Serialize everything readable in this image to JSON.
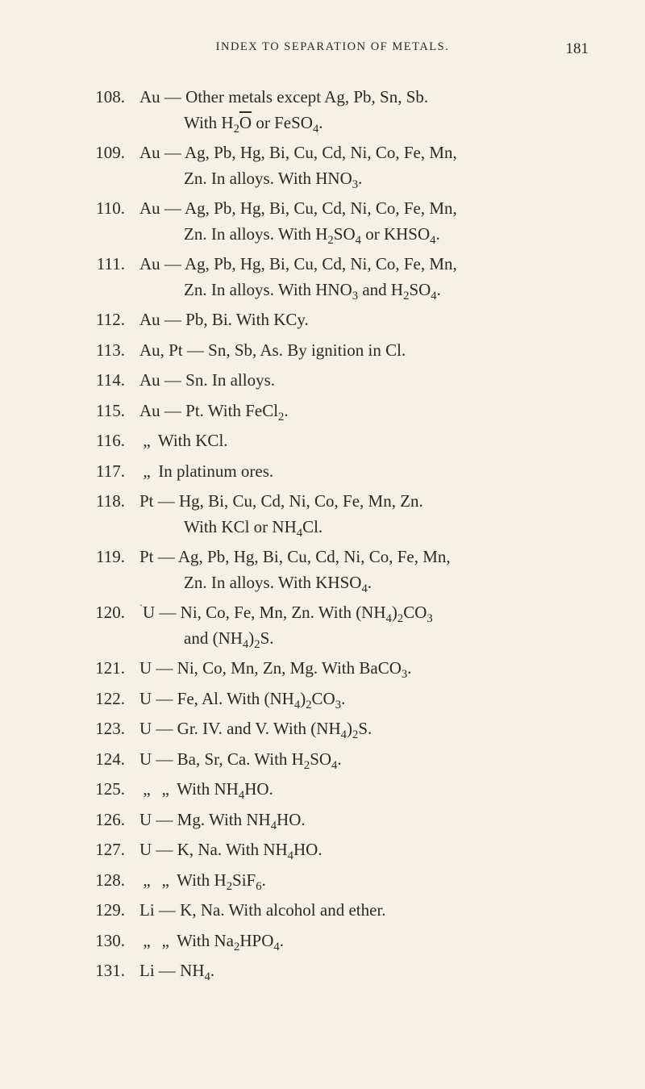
{
  "header_title": "INDEX TO SEPARATION OF METALS.",
  "page_number": "181",
  "text_color": "#2a2a22",
  "background_color": "#f5f1e4",
  "font_family": "Times New Roman",
  "body_fontsize": 21,
  "header_fontsize": 14.5,
  "pagenum_fontsize": 19,
  "entries": [
    {
      "num": "108.",
      "line1": "Au — Other metals except Ag, Pb, Sn, Sb.",
      "line2": "With H₂O̅ or FeSO₄."
    },
    {
      "num": "109.",
      "line1": "Au — Ag, Pb, Hg, Bi, Cu, Cd, Ni, Co, Fe, Mn,",
      "line2": "Zn.   In alloys.   With HNO₃."
    },
    {
      "num": "110.",
      "line1": "Au — Ag, Pb, Hg, Bi, Cu, Cd, Ni, Co, Fe, Mn,",
      "line2": "Zn.   In alloys.   With H₂SO₄ or KHSO₄."
    },
    {
      "num": "111.",
      "line1": "Au — Ag, Pb, Hg, Bi, Cu, Cd, Ni, Co, Fe, Mn,",
      "line2": "Zn.   In alloys.   With HNO₃ and H₂SO₄."
    },
    {
      "num": "112.",
      "line1": "Au — Pb, Bi.   With KCy."
    },
    {
      "num": "113.",
      "line1": "Au, Pt — Sn, Sb, As.   By ignition in Cl."
    },
    {
      "num": "114.",
      "line1": "Au — Sn.   In alloys."
    },
    {
      "num": "115.",
      "line1": "Au — Pt.   With FeCl₂."
    },
    {
      "num": "116.",
      "line1": "      „        With KCl."
    },
    {
      "num": "117.",
      "line1": "      „        In platinum ores."
    },
    {
      "num": "118.",
      "line1": "Pt — Hg, Bi, Cu, Cd, Ni, Co, Fe, Mn, Zn.",
      "line2": "With KCl or NH₄Cl."
    },
    {
      "num": "119.",
      "line1": "Pt — Ag, Pb, Hg, Bi, Cu, Cd, Ni, Co, Fe, Mn,",
      "line2": "Zn.   In alloys.   With KHSO₄."
    },
    {
      "num": "120.",
      "line1": "U — Ni, Co, Fe, Mn, Zn.   With (NH₄)₂CO₃",
      "line2": "and (NH₄)₂S.",
      "tick": true
    },
    {
      "num": "121.",
      "line1": "U — Ni, Co, Mn, Zn, Mg.   With BaCO₃."
    },
    {
      "num": "122.",
      "line1": "U — Fe, Al.   With (NH₄)₂CO₃."
    },
    {
      "num": "123.",
      "line1": "U — Gr. IV. and V.   With (NH₄)₂S."
    },
    {
      "num": "124.",
      "line1": "U — Ba, Sr, Ca.   With H₂SO₄."
    },
    {
      "num": "125.",
      "line1": "      „           „       With NH₄HO."
    },
    {
      "num": "126.",
      "line1": "U — Mg.   With NH₄HO."
    },
    {
      "num": "127.",
      "line1": "U — K, Na.   With NH₄HO."
    },
    {
      "num": "128.",
      "line1": "      „        „     With H₂SiF₆."
    },
    {
      "num": "129.",
      "line1": "Li — K, Na.   With alcohol and ether."
    },
    {
      "num": "130.",
      "line1": "      „        „     With Na₂HPO₄."
    },
    {
      "num": "131.",
      "line1": "Li — NH₄."
    }
  ]
}
